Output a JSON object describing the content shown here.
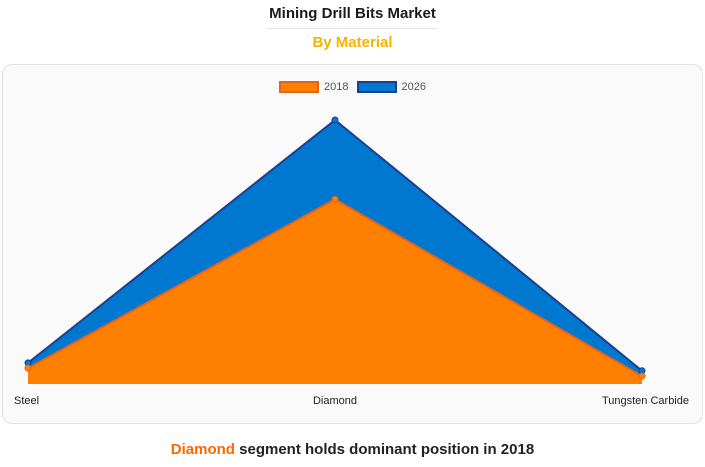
{
  "header": {
    "title": "Mining Drill Bits Market",
    "subtitle": "By Material"
  },
  "colors": {
    "accent": "#f5b400",
    "highlight": "#ff6600",
    "series_2018_fill": "#ff7f00",
    "series_2018_line": "#e0641e",
    "series_2026_fill": "#0078d0",
    "series_2026_line": "#1a3f8f"
  },
  "chart_data": {
    "type": "area",
    "title": "",
    "xlabel": "",
    "ylabel": "",
    "categories": [
      "Steel",
      "Diamond",
      "Tungsten Carbide"
    ],
    "series": [
      {
        "name": "2018",
        "values": [
          6,
          70,
          3
        ]
      },
      {
        "name": "2026",
        "values": [
          8,
          100,
          5
        ]
      }
    ],
    "ylim": [
      0,
      100
    ],
    "grid": false,
    "legend_position": "top-center"
  },
  "footer": {
    "highlight": "Diamond",
    "text": "segment holds dominant position in 2018"
  }
}
